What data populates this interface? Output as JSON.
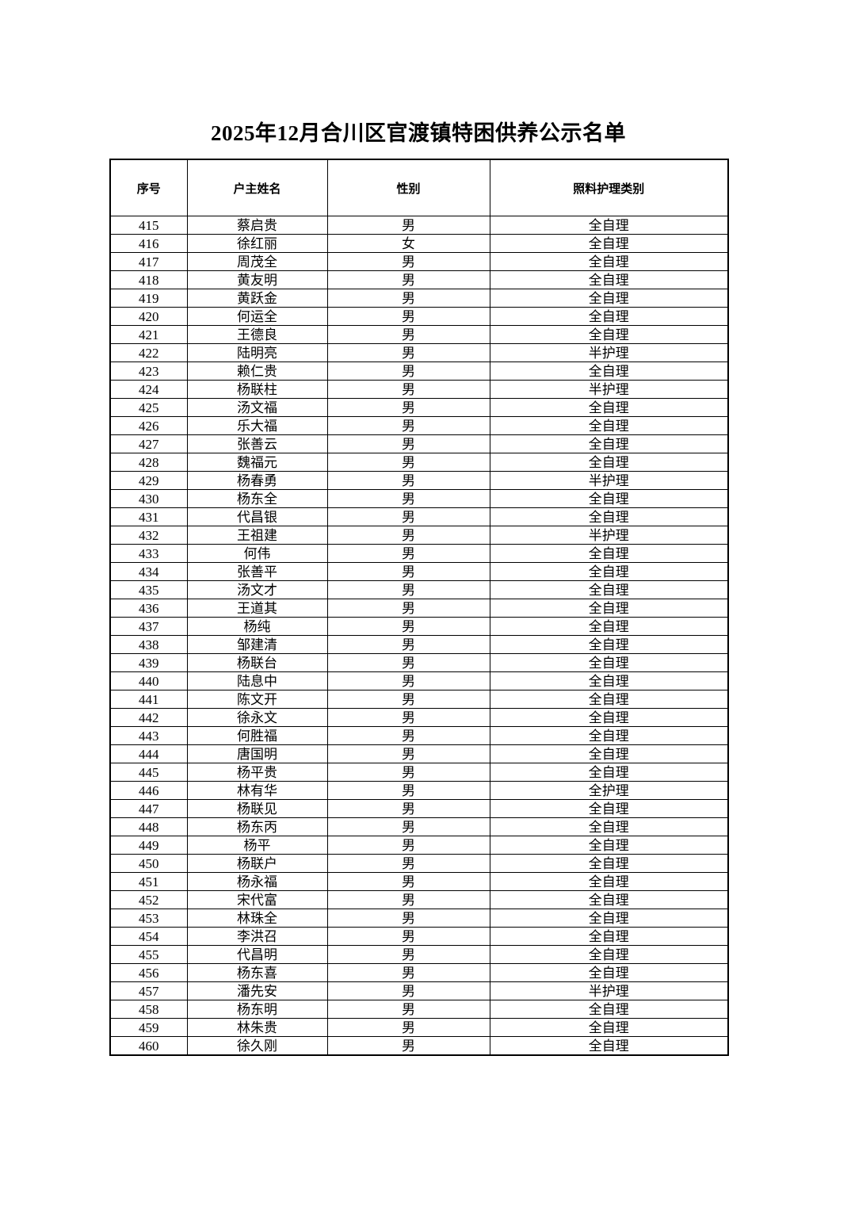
{
  "page": {
    "title": "2025年12月合川区官渡镇特困供养公示名单",
    "background_color": "#ffffff",
    "text_color": "#000000",
    "border_color": "#000000"
  },
  "table": {
    "headers": [
      "序号",
      "户主姓名",
      "性别",
      "照料护理类别"
    ],
    "column_keys": [
      "index",
      "name",
      "gender",
      "category"
    ],
    "rows": [
      [
        "415",
        "蔡启贵",
        "男",
        "全自理"
      ],
      [
        "416",
        "徐红丽",
        "女",
        "全自理"
      ],
      [
        "417",
        "周茂全",
        "男",
        "全自理"
      ],
      [
        "418",
        "黄友明",
        "男",
        "全自理"
      ],
      [
        "419",
        "黄跃金",
        "男",
        "全自理"
      ],
      [
        "420",
        "何运全",
        "男",
        "全自理"
      ],
      [
        "421",
        "王德良",
        "男",
        "全自理"
      ],
      [
        "422",
        "陆明亮",
        "男",
        "半护理"
      ],
      [
        "423",
        "赖仁贵",
        "男",
        "全自理"
      ],
      [
        "424",
        "杨联柱",
        "男",
        "半护理"
      ],
      [
        "425",
        "汤文福",
        "男",
        "全自理"
      ],
      [
        "426",
        "乐大福",
        "男",
        "全自理"
      ],
      [
        "427",
        "张善云",
        "男",
        "全自理"
      ],
      [
        "428",
        "魏福元",
        "男",
        "全自理"
      ],
      [
        "429",
        "杨春勇",
        "男",
        "半护理"
      ],
      [
        "430",
        "杨东全",
        "男",
        "全自理"
      ],
      [
        "431",
        "代昌银",
        "男",
        "全自理"
      ],
      [
        "432",
        "王祖建",
        "男",
        "半护理"
      ],
      [
        "433",
        "何伟",
        "男",
        "全自理"
      ],
      [
        "434",
        "张善平",
        "男",
        "全自理"
      ],
      [
        "435",
        "汤文才",
        "男",
        "全自理"
      ],
      [
        "436",
        "王道其",
        "男",
        "全自理"
      ],
      [
        "437",
        "杨纯",
        "男",
        "全自理"
      ],
      [
        "438",
        "邹建清",
        "男",
        "全自理"
      ],
      [
        "439",
        "杨联台",
        "男",
        "全自理"
      ],
      [
        "440",
        "陆息中",
        "男",
        "全自理"
      ],
      [
        "441",
        "陈文开",
        "男",
        "全自理"
      ],
      [
        "442",
        "徐永文",
        "男",
        "全自理"
      ],
      [
        "443",
        "何胜福",
        "男",
        "全自理"
      ],
      [
        "444",
        "唐国明",
        "男",
        "全自理"
      ],
      [
        "445",
        "杨平贵",
        "男",
        "全自理"
      ],
      [
        "446",
        "林有华",
        "男",
        "全护理"
      ],
      [
        "447",
        "杨联见",
        "男",
        "全自理"
      ],
      [
        "448",
        "杨东丙",
        "男",
        "全自理"
      ],
      [
        "449",
        "杨平",
        "男",
        "全自理"
      ],
      [
        "450",
        "杨联户",
        "男",
        "全自理"
      ],
      [
        "451",
        "杨永福",
        "男",
        "全自理"
      ],
      [
        "452",
        "宋代富",
        "男",
        "全自理"
      ],
      [
        "453",
        "林珠全",
        "男",
        "全自理"
      ],
      [
        "454",
        "李洪召",
        "男",
        "全自理"
      ],
      [
        "455",
        "代昌明",
        "男",
        "全自理"
      ],
      [
        "456",
        "杨东喜",
        "男",
        "全自理"
      ],
      [
        "457",
        "潘先安",
        "男",
        "半护理"
      ],
      [
        "458",
        "杨东明",
        "男",
        "全自理"
      ],
      [
        "459",
        "林朱贵",
        "男",
        "全自理"
      ],
      [
        "460",
        "徐久刚",
        "男",
        "全自理"
      ]
    ]
  }
}
